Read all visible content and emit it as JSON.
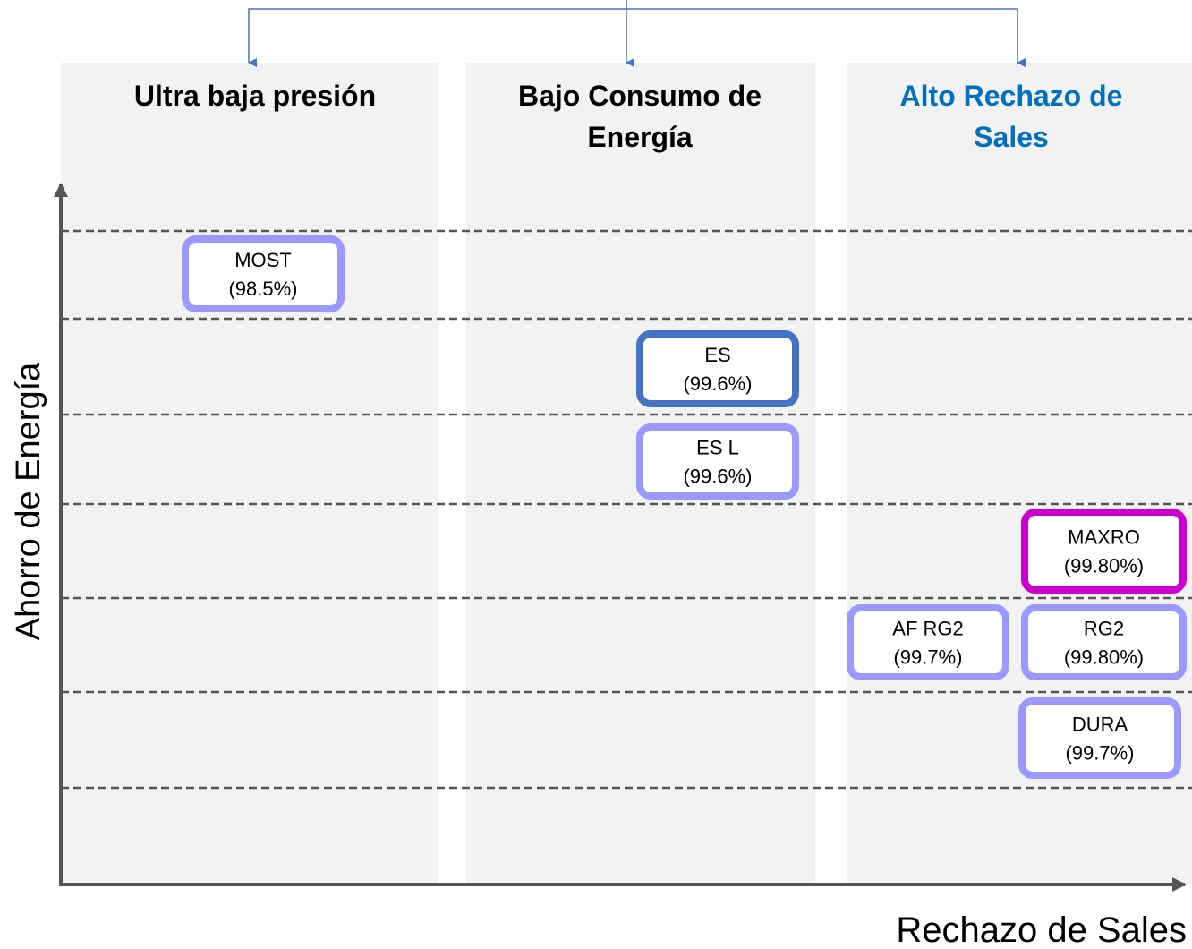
{
  "columns": [
    {
      "title": [
        "Ultra baja presión"
      ]
    },
    {
      "title": [
        "Bajo Consumo de",
        "Energía"
      ]
    },
    {
      "title": [
        "Alto Rechazo de",
        "Sales"
      ]
    }
  ],
  "axes": {
    "y_label": "Ahorro de Energía",
    "x_label": "Rechazo de Sales"
  },
  "nodes": [
    {
      "label": "MOST",
      "value": "(98.5%)"
    },
    {
      "label": "ES",
      "value": "(99.6%)"
    },
    {
      "label": "ES L",
      "value": "(99.6%)"
    },
    {
      "label": "MAXRO",
      "value": "(99.80%)"
    },
    {
      "label": "AF RG2",
      "value": "(99.7%)"
    },
    {
      "label": "RG2",
      "value": "(99.80%)"
    },
    {
      "label": "DURA",
      "value": "(99.7%)"
    }
  ]
}
